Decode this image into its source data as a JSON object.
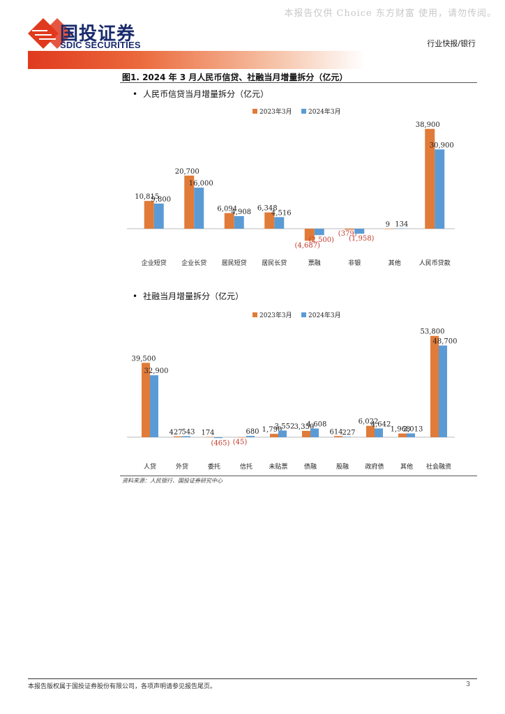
{
  "header": {
    "watermark": "本报告仅供 Choice 东方财富 使用，请勿传阅。",
    "logo_cn": "国投证券",
    "logo_en": "SDIC SECURITIES",
    "report_type": "行业快报/银行",
    "brand_color": "#e03a1e"
  },
  "figure": {
    "title": "图1. 2024 年 3 月人民币信贷、社融当月增量拆分（亿元）"
  },
  "colors": {
    "s2023": "#e07b39",
    "s2024": "#5b9bd5",
    "negative_label": "#c0392b"
  },
  "chart_data": [
    {
      "type": "bar",
      "title": "人民币信贷当月增量拆分（亿元）",
      "categories": [
        "企业短贷",
        "企业长贷",
        "居民短贷",
        "居民长贷",
        "票融",
        "非银",
        "其他",
        "人民币贷款"
      ],
      "series": [
        {
          "name": "2023年3月",
          "values": [
            10815,
            20700,
            6094,
            6348,
            -4687,
            -379,
            9,
            38900
          ],
          "labels": [
            "10,815",
            "20,700",
            "6,094",
            "6,348",
            "(4,687)",
            "(379)",
            "9",
            "38,900"
          ]
        },
        {
          "name": "2024年3月",
          "values": [
            9800,
            16000,
            4908,
            4516,
            -2500,
            -1958,
            134,
            30900
          ],
          "labels": [
            "9,800",
            "16,000",
            "4,908",
            "4,516",
            "(2,500)",
            "(1,958)",
            "134",
            "30,900"
          ]
        }
      ],
      "legend": "top-right"
    },
    {
      "type": "bar",
      "title": "社融当月增量拆分（亿元）",
      "categories": [
        "人贷",
        "外贷",
        "委托",
        "信托",
        "未贴票",
        "债融",
        "股融",
        "政府债",
        "其他",
        "社会融资"
      ],
      "series": [
        {
          "name": "2023年3月",
          "values": [
            39500,
            427,
            174,
            -45,
            1790,
            3350,
            614,
            6022,
            1968,
            53800
          ],
          "labels": [
            "39,500",
            "427",
            "174",
            "(45)",
            "1,790",
            "3,350",
            "614",
            "6,022",
            "1,968",
            "53,800"
          ]
        },
        {
          "name": "2024年3月",
          "values": [
            32900,
            543,
            -465,
            680,
            3552,
            4608,
            227,
            4642,
            2013,
            48700
          ],
          "labels": [
            "32,900",
            "543",
            "(465)",
            "680",
            "3,552",
            "4,608",
            "227",
            "4,642",
            "2,013",
            "48,700"
          ]
        }
      ],
      "legend": "top-right"
    }
  ],
  "source": "资料来源：人民银行、国投证券研究中心",
  "footer": {
    "disclaimer": "本报告版权属于国投证券股份有限公司，各项声明请参见报告尾页。",
    "page_number": "3"
  }
}
